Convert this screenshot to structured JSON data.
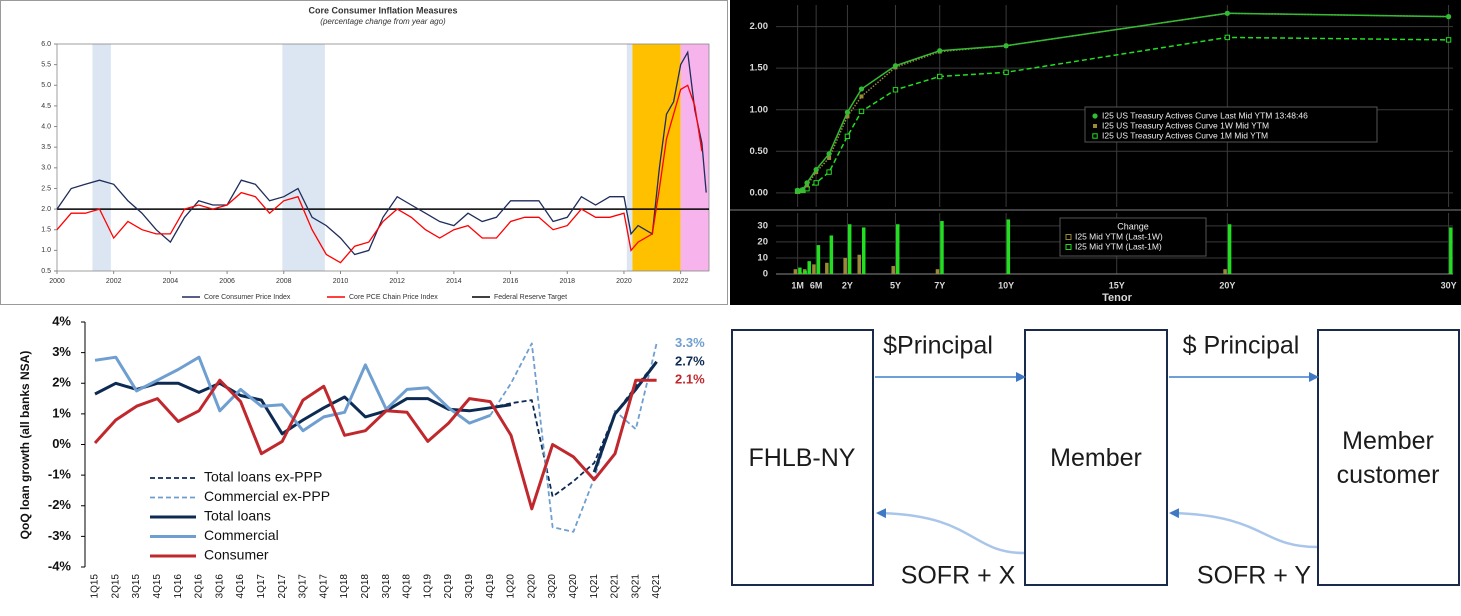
{
  "chart_data": [
    {
      "type": "line",
      "title": "Core Consumer Inflation Measures",
      "subtitle": "(percentage change from year ago)",
      "x": [
        2000,
        2000.5,
        2001,
        2001.5,
        2002,
        2002.5,
        2003,
        2003.5,
        2004,
        2004.5,
        2005,
        2005.5,
        2006,
        2006.5,
        2007,
        2007.5,
        2008,
        2008.5,
        2009,
        2009.5,
        2010,
        2010.5,
        2011,
        2011.5,
        2012,
        2012.5,
        2013,
        2013.5,
        2014,
        2014.5,
        2015,
        2015.5,
        2016,
        2016.5,
        2017,
        2017.5,
        2018,
        2018.5,
        2019,
        2019.5,
        2020,
        2020.25,
        2020.5,
        2021,
        2021.25,
        2021.5,
        2021.75,
        2022,
        2022.25,
        2022.5,
        2022.75,
        2022.9
      ],
      "xlim": [
        2000,
        2023
      ],
      "xticks": [
        2000,
        2002,
        2004,
        2006,
        2008,
        2010,
        2012,
        2014,
        2016,
        2018,
        2020,
        2022
      ],
      "ylim": [
        0.5,
        6
      ],
      "yticks": [
        0.5,
        {
          "value": 1,
          "label": "1.0"
        },
        1.5,
        {
          "value": 2,
          "label": "2.0"
        },
        2.5,
        {
          "value": 3,
          "label": "3.0"
        },
        3.5,
        {
          "value": 4,
          "label": "4.0"
        },
        4.5,
        {
          "value": 5,
          "label": "5.0"
        },
        5.5,
        {
          "value": 6,
          "label": "6.0"
        }
      ],
      "shading": [
        {
          "x": [
            2001.25,
            2001.9
          ],
          "color": "#dce6f2"
        },
        {
          "x": [
            2007.95,
            2009.45
          ],
          "color": "#dce6f2"
        },
        {
          "x": [
            2020.1,
            2020.3
          ],
          "color": "#dce6f2"
        },
        {
          "x": [
            2020.3,
            2022.0
          ],
          "color": "#ffc000"
        },
        {
          "x": [
            2022.0,
            2023.0
          ],
          "color": "#f7b4ec"
        }
      ],
      "series": [
        {
          "name": "Core Consumer Price Index",
          "color": "#1f2d5c",
          "values": [
            2.0,
            2.5,
            2.6,
            2.7,
            2.6,
            2.2,
            1.9,
            1.5,
            1.2,
            1.8,
            2.2,
            2.1,
            2.1,
            2.7,
            2.6,
            2.2,
            2.3,
            2.5,
            1.8,
            1.6,
            1.3,
            0.9,
            1.0,
            1.8,
            2.3,
            2.1,
            1.9,
            1.7,
            1.6,
            1.9,
            1.7,
            1.8,
            2.2,
            2.2,
            2.2,
            1.7,
            1.8,
            2.3,
            2.1,
            2.3,
            2.3,
            1.4,
            1.6,
            1.4,
            3.0,
            4.3,
            4.6,
            5.5,
            5.8,
            4.4,
            3.6,
            2.4
          ]
        },
        {
          "name": "Core PCE Chain Price Index",
          "color": "#ff0000",
          "values": [
            1.5,
            1.9,
            1.9,
            2.0,
            1.3,
            1.7,
            1.5,
            1.4,
            1.4,
            2.0,
            2.1,
            2.0,
            2.1,
            2.4,
            2.3,
            1.9,
            2.2,
            2.3,
            1.5,
            0.9,
            0.7,
            1.1,
            1.2,
            1.7,
            2.0,
            1.8,
            1.5,
            1.3,
            1.5,
            1.6,
            1.3,
            1.3,
            1.7,
            1.8,
            1.8,
            1.5,
            1.6,
            2.0,
            1.8,
            1.8,
            1.9,
            1.0,
            1.2,
            1.4,
            2.5,
            3.7,
            4.3,
            4.9,
            5.0,
            4.5,
            3.4,
            null
          ]
        }
      ],
      "reference_line": {
        "name": "Federal Reserve Target",
        "value": 2,
        "color": "#000000"
      },
      "legend": "bottom"
    },
    {
      "type": "line",
      "x": [
        0.0833,
        0.1667,
        0.25,
        0.5,
        1,
        2,
        3,
        5,
        7,
        10,
        20,
        30
      ],
      "xlim": [
        -0.4,
        30.2
      ],
      "ylim": [
        -0.17,
        2.26
      ],
      "yticks": [
        {
          "value": 0,
          "label": "0.00"
        },
        {
          "value": 0.5,
          "label": "0.50"
        },
        {
          "value": 1,
          "label": "1.00"
        },
        {
          "value": 1.5,
          "label": "1.50"
        },
        {
          "value": 2,
          "label": "2.00"
        }
      ],
      "grid": true,
      "series": [
        {
          "name": "I25 US Treasury Actives Curve Last Mid YTM 13:48:46",
          "color": "#33bb33",
          "marker": "circle",
          "dash": "solid",
          "values": [
            0.03,
            0.04,
            0.12,
            0.28,
            0.47,
            0.97,
            1.25,
            1.53,
            1.71,
            1.77,
            2.16,
            2.12
          ]
        },
        {
          "name": "I25 US Treasury Actives Curve 1W Mid YTM",
          "color": "#9a8a35",
          "marker": "square",
          "dash": "dot",
          "values": [
            0.02,
            0.03,
            0.09,
            0.25,
            0.42,
            0.92,
            1.16,
            1.51,
            1.7,
            1.77,
            2.16,
            2.12
          ]
        },
        {
          "name": "I25 US Treasury Actives Curve 1M Mid YTM",
          "color": "#22dd22",
          "marker": "open-square",
          "dash": "dash",
          "values": [
            0.02,
            0.03,
            0.05,
            0.12,
            0.25,
            0.68,
            0.98,
            1.24,
            1.4,
            1.45,
            1.87,
            1.84
          ]
        }
      ]
    },
    {
      "type": "bar",
      "legend_title": "Change",
      "x": [
        0.0833,
        0.1667,
        0.25,
        0.5,
        1,
        2,
        3,
        5,
        7,
        10,
        20,
        30
      ],
      "xlim": [
        -0.4,
        30.2
      ],
      "xticks": [
        {
          "value": 0.0833,
          "label": "1M"
        },
        {
          "value": 0.5,
          "label": "6M"
        },
        {
          "value": 2,
          "label": "2Y"
        },
        {
          "value": 5,
          "label": "5Y"
        },
        {
          "value": 7,
          "label": "7Y"
        },
        {
          "value": 10,
          "label": "10Y"
        },
        {
          "value": 15,
          "label": "15Y"
        },
        {
          "value": 20,
          "label": "20Y"
        },
        {
          "value": 30,
          "label": "30Y"
        }
      ],
      "xlabel": "Tenor",
      "ylim": [
        0,
        38
      ],
      "yticks": [
        0,
        10,
        20,
        30
      ],
      "grid": true,
      "series": [
        {
          "name": "I25 Mid YTM (Last-1W)",
          "color": "#9a8a35",
          "values": [
            3,
            1,
            3,
            6,
            7,
            10,
            12,
            5,
            3,
            0,
            3,
            0
          ]
        },
        {
          "name": "I25 Mid YTM (Last-1M)",
          "color": "#22dd22",
          "values": [
            4,
            2,
            8,
            18,
            24,
            31,
            29,
            31,
            33,
            34,
            31,
            29
          ]
        }
      ]
    },
    {
      "type": "line",
      "ylabel": "QoQ loan growth (all banks NSA)",
      "categories": [
        "1Q15",
        "2Q15",
        "3Q15",
        "4Q15",
        "1Q16",
        "2Q16",
        "3Q16",
        "4Q16",
        "1Q17",
        "2Q17",
        "3Q17",
        "4Q17",
        "1Q18",
        "2Q18",
        "3Q18",
        "4Q18",
        "1Q19",
        "2Q19",
        "3Q19",
        "4Q19",
        "1Q20",
        "2Q20",
        "3Q20",
        "4Q20",
        "1Q21",
        "2Q21",
        "3Q21",
        "4Q21"
      ],
      "ylim": [
        -4,
        4
      ],
      "yticks": [
        {
          "value": -4,
          "label": "-4%"
        },
        {
          "value": -3,
          "label": "-3%"
        },
        {
          "value": -2,
          "label": "-2%"
        },
        {
          "value": -1,
          "label": "-1%"
        },
        {
          "value": 0,
          "label": "0%"
        },
        {
          "value": 1,
          "label": "1%"
        },
        {
          "value": 2,
          "label": "2%"
        },
        {
          "value": 3,
          "label": "3%"
        },
        {
          "value": 4,
          "label": "4%"
        }
      ],
      "series": [
        {
          "name": "Total loans ex-PPP",
          "color": "#0d2b52",
          "dash": "dash",
          "values": [
            null,
            null,
            null,
            null,
            null,
            null,
            null,
            null,
            null,
            null,
            null,
            null,
            null,
            null,
            null,
            null,
            null,
            null,
            null,
            1.2,
            1.35,
            1.45,
            -1.7,
            -1.2,
            -0.6,
            1.0,
            1.9,
            2.7
          ],
          "value_labels": [
            null,
            null,
            null,
            null,
            null,
            null,
            null,
            null,
            null,
            null,
            null,
            null,
            null,
            null,
            null,
            null,
            null,
            null,
            null,
            null,
            null,
            null,
            null,
            null,
            null,
            null,
            null,
            "2.7%"
          ]
        },
        {
          "name": "Commercial ex-PPP",
          "color": "#6f9fd0",
          "dash": "dash",
          "values": [
            null,
            null,
            null,
            null,
            null,
            null,
            null,
            null,
            null,
            null,
            null,
            null,
            null,
            null,
            null,
            null,
            null,
            null,
            null,
            0.95,
            2.0,
            3.3,
            -2.7,
            -2.85,
            -1.1,
            1.1,
            0.5,
            3.3
          ],
          "value_labels": [
            null,
            null,
            null,
            null,
            null,
            null,
            null,
            null,
            null,
            null,
            null,
            null,
            null,
            null,
            null,
            null,
            null,
            null,
            null,
            null,
            null,
            null,
            null,
            null,
            null,
            null,
            null,
            "3.3%"
          ]
        },
        {
          "name": "Total loans",
          "color": "#0d2b52",
          "dash": "solid",
          "values": [
            1.65,
            2.0,
            1.8,
            2.0,
            2.0,
            1.7,
            2.0,
            1.6,
            1.45,
            0.35,
            0.8,
            1.2,
            1.55,
            0.9,
            1.1,
            1.5,
            1.5,
            1.15,
            1.1,
            1.2,
            1.3,
            null,
            null,
            null,
            -0.9,
            1.0,
            1.8,
            2.7
          ]
        },
        {
          "name": "Commercial",
          "color": "#6f9fd0",
          "dash": "solid",
          "values": [
            2.75,
            2.85,
            1.75,
            2.1,
            2.45,
            2.85,
            1.1,
            1.8,
            1.25,
            1.3,
            0.45,
            0.9,
            1.05,
            2.6,
            1.15,
            1.8,
            1.85,
            1.2,
            0.7,
            0.95,
            null,
            null,
            null,
            null,
            null,
            null,
            null,
            null
          ]
        },
        {
          "name": "Consumer",
          "color": "#c0282d",
          "dash": "solid",
          "values": [
            0.05,
            0.8,
            1.25,
            1.5,
            0.75,
            1.1,
            2.1,
            1.4,
            -0.3,
            0.1,
            1.45,
            1.9,
            0.3,
            0.45,
            1.1,
            1.05,
            0.1,
            0.7,
            1.5,
            1.4,
            0.3,
            -2.1,
            0.0,
            -0.4,
            -1.15,
            -0.3,
            2.1,
            2.1
          ],
          "value_labels": [
            null,
            null,
            null,
            null,
            null,
            null,
            null,
            null,
            null,
            null,
            null,
            null,
            null,
            null,
            null,
            null,
            null,
            null,
            null,
            null,
            null,
            null,
            null,
            null,
            null,
            null,
            null,
            "2.1%"
          ]
        }
      ]
    }
  ],
  "diagram": {
    "nodes": [
      {
        "label": "FHLB-NY"
      },
      {
        "label": "Member"
      },
      {
        "label": "Member customer"
      }
    ],
    "edges": [
      {
        "label": "$Principal"
      },
      {
        "label": "$ Principal"
      },
      {
        "label": "SOFR + X"
      },
      {
        "label": "SOFR + Y"
      }
    ]
  }
}
